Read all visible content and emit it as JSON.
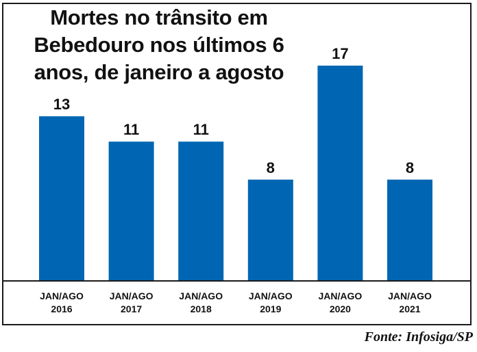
{
  "chart_data": {
    "type": "bar",
    "title": "Mortes no trânsito em Bebedouro nos últimos 6 anos, de janeiro a agosto",
    "categories": [
      [
        "JAN/AGO",
        "2016"
      ],
      [
        "JAN/AGO",
        "2017"
      ],
      [
        "JAN/AGO",
        "2018"
      ],
      [
        "JAN/AGO",
        "2019"
      ],
      [
        "JAN/AGO",
        "2020"
      ],
      [
        "JAN/AGO",
        "2021"
      ]
    ],
    "values": [
      13,
      11,
      11,
      8,
      17,
      8
    ],
    "data_labels": [
      "13",
      "11",
      "11",
      "8",
      "17",
      "8"
    ],
    "xlabel": "",
    "ylabel": "",
    "ylim": [
      0,
      19.7
    ],
    "grid": false,
    "legend": "none",
    "bar_color": "#0066b3"
  },
  "source": "Fonte: Infosiga/SP"
}
